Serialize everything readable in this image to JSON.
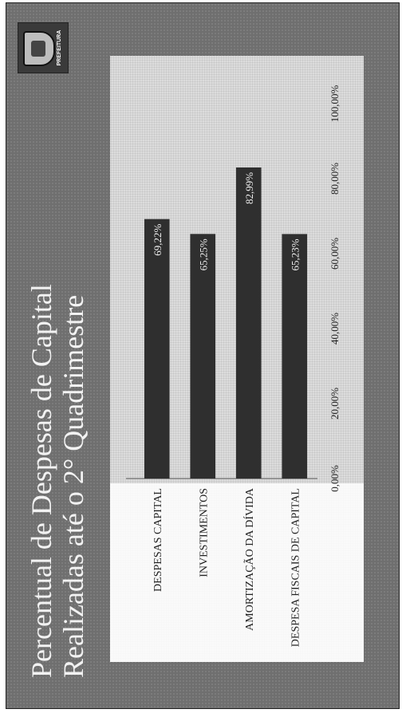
{
  "slide": {
    "title_line1": "Percentual de Despesas de Capital",
    "title_line2": "Realizadas até o 2° Quadrimestre",
    "logo_text": "PREFEITURA"
  },
  "chart_data": {
    "type": "bar",
    "orientation": "horizontal",
    "categories": [
      "DESPESAS CAPITAL",
      "INVESTIMENTOS",
      "AMORTIZAÇÃO DA DÍVIDA",
      "DESPESA FISCAIS DE CAPITAL"
    ],
    "values": [
      69.22,
      65.25,
      82.99,
      65.23
    ],
    "data_labels": [
      "69,22%",
      "65,25%",
      "82,99%",
      "65,23%"
    ],
    "xlim": [
      0,
      100
    ],
    "xticks": [
      "0,00%",
      "20,00%",
      "40,00%",
      "60,00%",
      "80,00%",
      "100,00%"
    ],
    "bar_color": "#2f2f2f",
    "grid": false,
    "legend": "none"
  }
}
